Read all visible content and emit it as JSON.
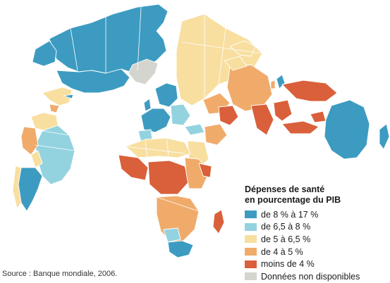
{
  "legend": {
    "title_line1": "Dépenses de santé",
    "title_line2": "en pourcentage du PIB",
    "items": [
      {
        "label": "de 8 % à 17 %",
        "color": "#3d9bc1"
      },
      {
        "label": "de 6,5 à 8 %",
        "color": "#93d3e0"
      },
      {
        "label": "de 5 à 6,5 %",
        "color": "#f8dfa0"
      },
      {
        "label": "de 4 à 5 %",
        "color": "#f0ab6b"
      },
      {
        "label": "moins de 4 %",
        "color": "#d9603b"
      },
      {
        "label": "Données non disponibles",
        "color": "#d5d5cf"
      }
    ]
  },
  "source": "Source : Banque mondiale, 2006."
}
